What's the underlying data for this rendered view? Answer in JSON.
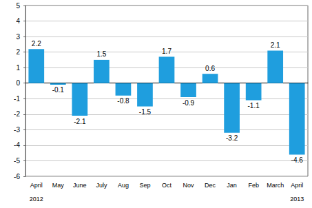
{
  "chart_data": {
    "type": "bar",
    "categories": [
      "April",
      "May",
      "June",
      "July",
      "Aug",
      "Sep",
      "Oct",
      "Nov",
      "Dec",
      "Jan",
      "Feb",
      "March",
      "April"
    ],
    "year_labels": [
      "2012",
      null,
      null,
      null,
      null,
      null,
      null,
      null,
      null,
      null,
      null,
      null,
      "2013"
    ],
    "values": [
      2.2,
      -0.1,
      -2.1,
      1.5,
      -0.8,
      -1.5,
      1.7,
      -0.9,
      0.6,
      -3.2,
      -1.1,
      2.1,
      -4.6
    ],
    "color": "#1f9ede",
    "ylim": [
      -6,
      5
    ],
    "yticks": [
      -6,
      -5,
      -4,
      -3,
      -2,
      -1,
      0,
      1,
      2,
      3,
      4,
      5
    ],
    "grid": true,
    "data_labels": true
  }
}
